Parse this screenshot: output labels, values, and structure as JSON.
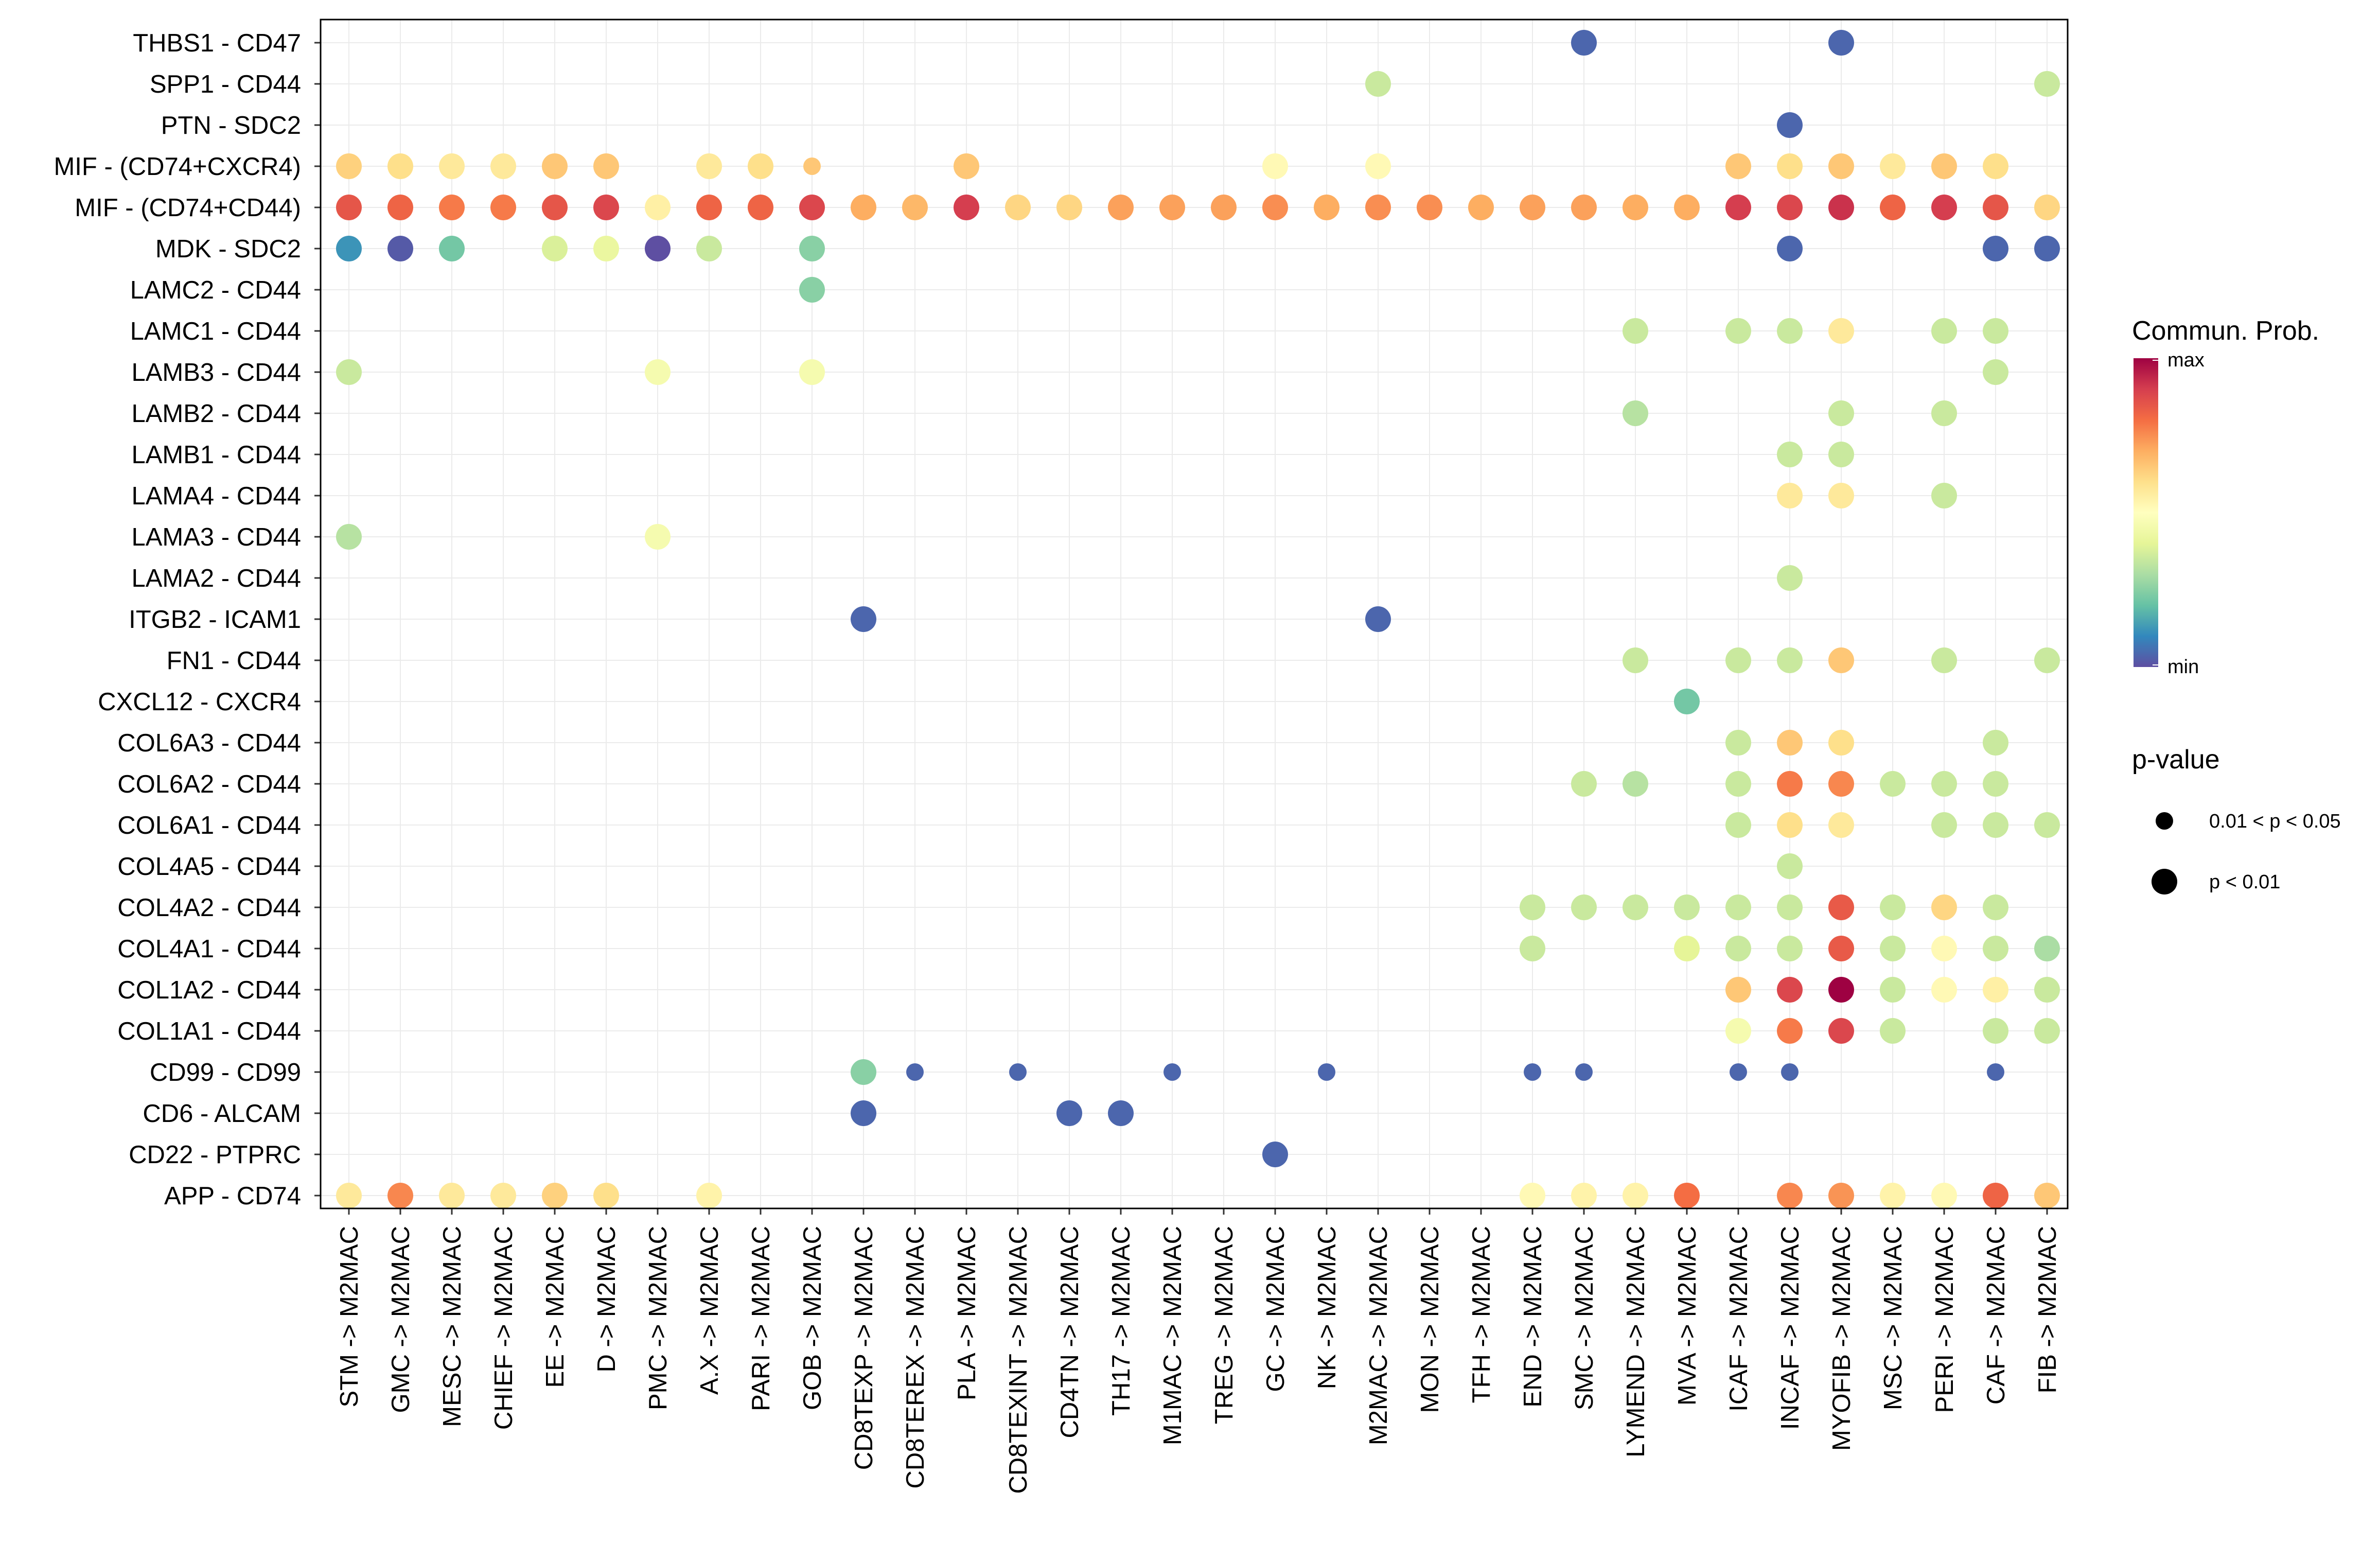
{
  "chart_data": {
    "type": "dot",
    "xlabel": "",
    "ylabel": "",
    "x_categories": [
      "STM -> M2MAC",
      "GMC -> M2MAC",
      "MESC -> M2MAC",
      "CHIEF -> M2MAC",
      "EE -> M2MAC",
      "D -> M2MAC",
      "PMC -> M2MAC",
      "A.X -> M2MAC",
      "PARI -> M2MAC",
      "GOB -> M2MAC",
      "CD8TEXP -> M2MAC",
      "CD8TEREX -> M2MAC",
      "PLA -> M2MAC",
      "CD8TEXINT -> M2MAC",
      "CD4TN -> M2MAC",
      "TH17 -> M2MAC",
      "M1MAC -> M2MAC",
      "TREG -> M2MAC",
      "GC -> M2MAC",
      "NK -> M2MAC",
      "M2MAC -> M2MAC",
      "MON -> M2MAC",
      "TFH -> M2MAC",
      "END -> M2MAC",
      "SMC -> M2MAC",
      "LYMEND -> M2MAC",
      "MVA -> M2MAC",
      "ICAF -> M2MAC",
      "INCAF -> M2MAC",
      "MYOFIB -> M2MAC",
      "MSC -> M2MAC",
      "PERI -> M2MAC",
      "CAF -> M2MAC",
      "FIB -> M2MAC"
    ],
    "y_categories": [
      "THBS1 - CD47",
      "SPP1 - CD44",
      "PTN - SDC2",
      "MIF - (CD74+CXCR4)",
      "MIF - (CD74+CD44)",
      "MDK - SDC2",
      "LAMC2 - CD44",
      "LAMC1 - CD44",
      "LAMB3 - CD44",
      "LAMB2 - CD44",
      "LAMB1 - CD44",
      "LAMA4 - CD44",
      "LAMA3 - CD44",
      "LAMA2 - CD44",
      "ITGB2 - ICAM1",
      "FN1 - CD44",
      "CXCL12 - CXCR4",
      "COL6A3 - CD44",
      "COL6A2 - CD44",
      "COL6A1 - CD44",
      "COL4A5 - CD44",
      "COL4A2 - CD44",
      "COL4A1 - CD44",
      "COL1A2 - CD44",
      "COL1A1 - CD44",
      "CD99 - CD99",
      "CD6 - ALCAM",
      "CD22 - PTPRC",
      "APP - CD74"
    ],
    "value_scale": "relative communication probability, 0 = min, 1 = max",
    "points": [
      [
        "THBS1 - CD47",
        "SMC -> M2MAC",
        0.04,
        2
      ],
      [
        "THBS1 - CD47",
        "MYOFIB -> M2MAC",
        0.04,
        2
      ],
      [
        "SPP1 - CD44",
        "M2MAC -> M2MAC",
        0.35,
        2
      ],
      [
        "SPP1 - CD44",
        "FIB -> M2MAC",
        0.35,
        2
      ],
      [
        "PTN - SDC2",
        "INCAF -> M2MAC",
        0.04,
        2
      ],
      [
        "MIF - (CD74+CXCR4)",
        "STM -> M2MAC",
        0.63,
        2
      ],
      [
        "MIF - (CD74+CXCR4)",
        "GMC -> M2MAC",
        0.6,
        2
      ],
      [
        "MIF - (CD74+CXCR4)",
        "MESC -> M2MAC",
        0.57,
        2
      ],
      [
        "MIF - (CD74+CXCR4)",
        "CHIEF -> M2MAC",
        0.57,
        2
      ],
      [
        "MIF - (CD74+CXCR4)",
        "EE -> M2MAC",
        0.65,
        2
      ],
      [
        "MIF - (CD74+CXCR4)",
        "D -> M2MAC",
        0.65,
        2
      ],
      [
        "MIF - (CD74+CXCR4)",
        "A.X -> M2MAC",
        0.57,
        2
      ],
      [
        "MIF - (CD74+CXCR4)",
        "PARI -> M2MAC",
        0.6,
        2
      ],
      [
        "MIF - (CD74+CXCR4)",
        "GOB -> M2MAC",
        0.65,
        1
      ],
      [
        "MIF - (CD74+CXCR4)",
        "PLA -> M2MAC",
        0.65,
        2
      ],
      [
        "MIF - (CD74+CXCR4)",
        "GC -> M2MAC",
        0.52,
        2
      ],
      [
        "MIF - (CD74+CXCR4)",
        "M2MAC -> M2MAC",
        0.52,
        2
      ],
      [
        "MIF - (CD74+CXCR4)",
        "ICAF -> M2MAC",
        0.65,
        2
      ],
      [
        "MIF - (CD74+CXCR4)",
        "INCAF -> M2MAC",
        0.6,
        2
      ],
      [
        "MIF - (CD74+CXCR4)",
        "MYOFIB -> M2MAC",
        0.65,
        2
      ],
      [
        "MIF - (CD74+CXCR4)",
        "MSC -> M2MAC",
        0.57,
        2
      ],
      [
        "MIF - (CD74+CXCR4)",
        "PERI -> M2MAC",
        0.65,
        2
      ],
      [
        "MIF - (CD74+CXCR4)",
        "CAF -> M2MAC",
        0.6,
        2
      ],
      [
        "MIF - (CD74+CD44)",
        "STM -> M2MAC",
        0.85,
        2
      ],
      [
        "MIF - (CD74+CD44)",
        "GMC -> M2MAC",
        0.82,
        2
      ],
      [
        "MIF - (CD74+CD44)",
        "MESC -> M2MAC",
        0.78,
        2
      ],
      [
        "MIF - (CD74+CD44)",
        "CHIEF -> M2MAC",
        0.78,
        2
      ],
      [
        "MIF - (CD74+CD44)",
        "EE -> M2MAC",
        0.85,
        2
      ],
      [
        "MIF - (CD74+CD44)",
        "D -> M2MAC",
        0.88,
        2
      ],
      [
        "MIF - (CD74+CD44)",
        "PMC -> M2MAC",
        0.55,
        2
      ],
      [
        "MIF - (CD74+CD44)",
        "A.X -> M2MAC",
        0.82,
        2
      ],
      [
        "MIF - (CD74+CD44)",
        "PARI -> M2MAC",
        0.82,
        2
      ],
      [
        "MIF - (CD74+CD44)",
        "GOB -> M2MAC",
        0.88,
        2
      ],
      [
        "MIF - (CD74+CD44)",
        "CD8TEXP -> M2MAC",
        0.7,
        2
      ],
      [
        "MIF - (CD74+CD44)",
        "CD8TEREX -> M2MAC",
        0.68,
        2
      ],
      [
        "MIF - (CD74+CD44)",
        "PLA -> M2MAC",
        0.9,
        2
      ],
      [
        "MIF - (CD74+CD44)",
        "CD8TEXINT -> M2MAC",
        0.62,
        2
      ],
      [
        "MIF - (CD74+CD44)",
        "CD4TN -> M2MAC",
        0.62,
        2
      ],
      [
        "MIF - (CD74+CD44)",
        "TH17 -> M2MAC",
        0.72,
        2
      ],
      [
        "MIF - (CD74+CD44)",
        "M1MAC -> M2MAC",
        0.72,
        2
      ],
      [
        "MIF - (CD74+CD44)",
        "TREG -> M2MAC",
        0.72,
        2
      ],
      [
        "MIF - (CD74+CD44)",
        "GC -> M2MAC",
        0.75,
        2
      ],
      [
        "MIF - (CD74+CD44)",
        "NK -> M2MAC",
        0.7,
        2
      ],
      [
        "MIF - (CD74+CD44)",
        "M2MAC -> M2MAC",
        0.75,
        2
      ],
      [
        "MIF - (CD74+CD44)",
        "MON -> M2MAC",
        0.75,
        2
      ],
      [
        "MIF - (CD74+CD44)",
        "TFH -> M2MAC",
        0.7,
        2
      ],
      [
        "MIF - (CD74+CD44)",
        "END -> M2MAC",
        0.72,
        2
      ],
      [
        "MIF - (CD74+CD44)",
        "SMC -> M2MAC",
        0.72,
        2
      ],
      [
        "MIF - (CD74+CD44)",
        "LYMEND -> M2MAC",
        0.7,
        2
      ],
      [
        "MIF - (CD74+CD44)",
        "MVA -> M2MAC",
        0.7,
        2
      ],
      [
        "MIF - (CD74+CD44)",
        "ICAF -> M2MAC",
        0.9,
        2
      ],
      [
        "MIF - (CD74+CD44)",
        "INCAF -> M2MAC",
        0.88,
        2
      ],
      [
        "MIF - (CD74+CD44)",
        "MYOFIB -> M2MAC",
        0.92,
        2
      ],
      [
        "MIF - (CD74+CD44)",
        "MSC -> M2MAC",
        0.82,
        2
      ],
      [
        "MIF - (CD74+CD44)",
        "PERI -> M2MAC",
        0.9,
        2
      ],
      [
        "MIF - (CD74+CD44)",
        "CAF -> M2MAC",
        0.85,
        2
      ],
      [
        "MIF - (CD74+CD44)",
        "FIB -> M2MAC",
        0.62,
        2
      ],
      [
        "MDK - SDC2",
        "STM -> M2MAC",
        0.12,
        2
      ],
      [
        "MDK - SDC2",
        "GMC -> M2MAC",
        0.02,
        2
      ],
      [
        "MDK - SDC2",
        "MESC -> M2MAC",
        0.22,
        2
      ],
      [
        "MDK - SDC2",
        "EE -> M2MAC",
        0.38,
        2
      ],
      [
        "MDK - SDC2",
        "D -> M2MAC",
        0.42,
        2
      ],
      [
        "MDK - SDC2",
        "PMC -> M2MAC",
        0.0,
        2
      ],
      [
        "MDK - SDC2",
        "A.X -> M2MAC",
        0.35,
        2
      ],
      [
        "MDK - SDC2",
        "GOB -> M2MAC",
        0.25,
        2
      ],
      [
        "MDK - SDC2",
        "INCAF -> M2MAC",
        0.04,
        2
      ],
      [
        "MDK - SDC2",
        "CAF -> M2MAC",
        0.04,
        2
      ],
      [
        "MDK - SDC2",
        "FIB -> M2MAC",
        0.04,
        2
      ],
      [
        "LAMC2 - CD44",
        "GOB -> M2MAC",
        0.25,
        2
      ],
      [
        "LAMC1 - CD44",
        "LYMEND -> M2MAC",
        0.35,
        2
      ],
      [
        "LAMC1 - CD44",
        "ICAF -> M2MAC",
        0.35,
        2
      ],
      [
        "LAMC1 - CD44",
        "INCAF -> M2MAC",
        0.35,
        2
      ],
      [
        "LAMC1 - CD44",
        "MYOFIB -> M2MAC",
        0.57,
        2
      ],
      [
        "LAMC1 - CD44",
        "PERI -> M2MAC",
        0.35,
        2
      ],
      [
        "LAMC1 - CD44",
        "CAF -> M2MAC",
        0.35,
        2
      ],
      [
        "LAMB3 - CD44",
        "STM -> M2MAC",
        0.35,
        2
      ],
      [
        "LAMB3 - CD44",
        "PMC -> M2MAC",
        0.46,
        2
      ],
      [
        "LAMB3 - CD44",
        "GOB -> M2MAC",
        0.46,
        2
      ],
      [
        "LAMB3 - CD44",
        "CAF -> M2MAC",
        0.35,
        2
      ],
      [
        "LAMB2 - CD44",
        "LYMEND -> M2MAC",
        0.32,
        2
      ],
      [
        "LAMB2 - CD44",
        "MYOFIB -> M2MAC",
        0.35,
        2
      ],
      [
        "LAMB2 - CD44",
        "PERI -> M2MAC",
        0.35,
        2
      ],
      [
        "LAMB1 - CD44",
        "INCAF -> M2MAC",
        0.35,
        2
      ],
      [
        "LAMB1 - CD44",
        "MYOFIB -> M2MAC",
        0.35,
        2
      ],
      [
        "LAMA4 - CD44",
        "INCAF -> M2MAC",
        0.57,
        2
      ],
      [
        "LAMA4 - CD44",
        "MYOFIB -> M2MAC",
        0.57,
        2
      ],
      [
        "LAMA4 - CD44",
        "PERI -> M2MAC",
        0.35,
        2
      ],
      [
        "LAMA3 - CD44",
        "STM -> M2MAC",
        0.32,
        2
      ],
      [
        "LAMA3 - CD44",
        "PMC -> M2MAC",
        0.46,
        2
      ],
      [
        "LAMA2 - CD44",
        "INCAF -> M2MAC",
        0.35,
        2
      ],
      [
        "ITGB2 - ICAM1",
        "CD8TEXP -> M2MAC",
        0.04,
        2
      ],
      [
        "ITGB2 - ICAM1",
        "M2MAC -> M2MAC",
        0.04,
        2
      ],
      [
        "FN1 - CD44",
        "LYMEND -> M2MAC",
        0.35,
        2
      ],
      [
        "FN1 - CD44",
        "ICAF -> M2MAC",
        0.35,
        2
      ],
      [
        "FN1 - CD44",
        "INCAF -> M2MAC",
        0.35,
        2
      ],
      [
        "FN1 - CD44",
        "MYOFIB -> M2MAC",
        0.65,
        2
      ],
      [
        "FN1 - CD44",
        "PERI -> M2MAC",
        0.35,
        2
      ],
      [
        "FN1 - CD44",
        "FIB -> M2MAC",
        0.35,
        2
      ],
      [
        "CXCL12 - CXCR4",
        "MVA -> M2MAC",
        0.22,
        2
      ],
      [
        "COL6A3 - CD44",
        "ICAF -> M2MAC",
        0.35,
        2
      ],
      [
        "COL6A3 - CD44",
        "INCAF -> M2MAC",
        0.65,
        2
      ],
      [
        "COL6A3 - CD44",
        "MYOFIB -> M2MAC",
        0.6,
        2
      ],
      [
        "COL6A3 - CD44",
        "CAF -> M2MAC",
        0.35,
        2
      ],
      [
        "COL6A2 - CD44",
        "SMC -> M2MAC",
        0.35,
        2
      ],
      [
        "COL6A2 - CD44",
        "LYMEND -> M2MAC",
        0.32,
        2
      ],
      [
        "COL6A2 - CD44",
        "ICAF -> M2MAC",
        0.35,
        2
      ],
      [
        "COL6A2 - CD44",
        "INCAF -> M2MAC",
        0.78,
        2
      ],
      [
        "COL6A2 - CD44",
        "MYOFIB -> M2MAC",
        0.76,
        2
      ],
      [
        "COL6A2 - CD44",
        "MSC -> M2MAC",
        0.35,
        2
      ],
      [
        "COL6A2 - CD44",
        "PERI -> M2MAC",
        0.35,
        2
      ],
      [
        "COL6A2 - CD44",
        "CAF -> M2MAC",
        0.35,
        2
      ],
      [
        "COL6A1 - CD44",
        "ICAF -> M2MAC",
        0.35,
        2
      ],
      [
        "COL6A1 - CD44",
        "INCAF -> M2MAC",
        0.6,
        2
      ],
      [
        "COL6A1 - CD44",
        "MYOFIB -> M2MAC",
        0.57,
        2
      ],
      [
        "COL6A1 - CD44",
        "PERI -> M2MAC",
        0.35,
        2
      ],
      [
        "COL6A1 - CD44",
        "CAF -> M2MAC",
        0.35,
        2
      ],
      [
        "COL6A1 - CD44",
        "FIB -> M2MAC",
        0.35,
        2
      ],
      [
        "COL4A5 - CD44",
        "INCAF -> M2MAC",
        0.35,
        2
      ],
      [
        "COL4A2 - CD44",
        "END -> M2MAC",
        0.35,
        2
      ],
      [
        "COL4A2 - CD44",
        "SMC -> M2MAC",
        0.35,
        2
      ],
      [
        "COL4A2 - CD44",
        "LYMEND -> M2MAC",
        0.35,
        2
      ],
      [
        "COL4A2 - CD44",
        "MVA -> M2MAC",
        0.35,
        2
      ],
      [
        "COL4A2 - CD44",
        "ICAF -> M2MAC",
        0.35,
        2
      ],
      [
        "COL4A2 - CD44",
        "INCAF -> M2MAC",
        0.35,
        2
      ],
      [
        "COL4A2 - CD44",
        "MYOFIB -> M2MAC",
        0.84,
        2
      ],
      [
        "COL4A2 - CD44",
        "MSC -> M2MAC",
        0.35,
        2
      ],
      [
        "COL4A2 - CD44",
        "PERI -> M2MAC",
        0.62,
        2
      ],
      [
        "COL4A2 - CD44",
        "CAF -> M2MAC",
        0.35,
        2
      ],
      [
        "COL4A1 - CD44",
        "END -> M2MAC",
        0.35,
        2
      ],
      [
        "COL4A1 - CD44",
        "MVA -> M2MAC",
        0.4,
        2
      ],
      [
        "COL4A1 - CD44",
        "ICAF -> M2MAC",
        0.35,
        2
      ],
      [
        "COL4A1 - CD44",
        "INCAF -> M2MAC",
        0.35,
        2
      ],
      [
        "COL4A1 - CD44",
        "MYOFIB -> M2MAC",
        0.84,
        2
      ],
      [
        "COL4A1 - CD44",
        "MSC -> M2MAC",
        0.35,
        2
      ],
      [
        "COL4A1 - CD44",
        "PERI -> M2MAC",
        0.52,
        2
      ],
      [
        "COL4A1 - CD44",
        "CAF -> M2MAC",
        0.35,
        2
      ],
      [
        "COL4A1 - CD44",
        "FIB -> M2MAC",
        0.3,
        2
      ],
      [
        "COL1A2 - CD44",
        "ICAF -> M2MAC",
        0.65,
        2
      ],
      [
        "COL1A2 - CD44",
        "INCAF -> M2MAC",
        0.88,
        2
      ],
      [
        "COL1A2 - CD44",
        "MYOFIB -> M2MAC",
        1.0,
        2
      ],
      [
        "COL1A2 - CD44",
        "MSC -> M2MAC",
        0.35,
        2
      ],
      [
        "COL1A2 - CD44",
        "PERI -> M2MAC",
        0.52,
        2
      ],
      [
        "COL1A2 - CD44",
        "CAF -> M2MAC",
        0.55,
        2
      ],
      [
        "COL1A2 - CD44",
        "FIB -> M2MAC",
        0.35,
        2
      ],
      [
        "COL1A1 - CD44",
        "ICAF -> M2MAC",
        0.46,
        2
      ],
      [
        "COL1A1 - CD44",
        "INCAF -> M2MAC",
        0.78,
        2
      ],
      [
        "COL1A1 - CD44",
        "MYOFIB -> M2MAC",
        0.88,
        2
      ],
      [
        "COL1A1 - CD44",
        "MSC -> M2MAC",
        0.35,
        2
      ],
      [
        "COL1A1 - CD44",
        "CAF -> M2MAC",
        0.35,
        2
      ],
      [
        "COL1A1 - CD44",
        "FIB -> M2MAC",
        0.35,
        2
      ],
      [
        "CD99 - CD99",
        "CD8TEXP -> M2MAC",
        0.25,
        2
      ],
      [
        "CD99 - CD99",
        "CD8TEREX -> M2MAC",
        0.04,
        1
      ],
      [
        "CD99 - CD99",
        "CD8TEXINT -> M2MAC",
        0.04,
        1
      ],
      [
        "CD99 - CD99",
        "M1MAC -> M2MAC",
        0.04,
        1
      ],
      [
        "CD99 - CD99",
        "NK -> M2MAC",
        0.04,
        1
      ],
      [
        "CD99 - CD99",
        "END -> M2MAC",
        0.04,
        1
      ],
      [
        "CD99 - CD99",
        "SMC -> M2MAC",
        0.04,
        1
      ],
      [
        "CD99 - CD99",
        "ICAF -> M2MAC",
        0.04,
        1
      ],
      [
        "CD99 - CD99",
        "INCAF -> M2MAC",
        0.04,
        1
      ],
      [
        "CD99 - CD99",
        "CAF -> M2MAC",
        0.04,
        1
      ],
      [
        "CD6 - ALCAM",
        "CD8TEXP -> M2MAC",
        0.04,
        2
      ],
      [
        "CD6 - ALCAM",
        "CD4TN -> M2MAC",
        0.04,
        2
      ],
      [
        "CD6 - ALCAM",
        "TH17 -> M2MAC",
        0.04,
        2
      ],
      [
        "CD22 - PTPRC",
        "GC -> M2MAC",
        0.04,
        2
      ],
      [
        "APP - CD74",
        "STM -> M2MAC",
        0.57,
        2
      ],
      [
        "APP - CD74",
        "GMC -> M2MAC",
        0.76,
        2
      ],
      [
        "APP - CD74",
        "MESC -> M2MAC",
        0.57,
        2
      ],
      [
        "APP - CD74",
        "CHIEF -> M2MAC",
        0.57,
        2
      ],
      [
        "APP - CD74",
        "EE -> M2MAC",
        0.63,
        2
      ],
      [
        "APP - CD74",
        "D -> M2MAC",
        0.6,
        2
      ],
      [
        "APP - CD74",
        "A.X -> M2MAC",
        0.54,
        2
      ],
      [
        "APP - CD74",
        "END -> M2MAC",
        0.52,
        2
      ],
      [
        "APP - CD74",
        "SMC -> M2MAC",
        0.54,
        2
      ],
      [
        "APP - CD74",
        "LYMEND -> M2MAC",
        0.54,
        2
      ],
      [
        "APP - CD74",
        "MVA -> M2MAC",
        0.8,
        2
      ],
      [
        "APP - CD74",
        "INCAF -> M2MAC",
        0.76,
        2
      ],
      [
        "APP - CD74",
        "MYOFIB -> M2MAC",
        0.74,
        2
      ],
      [
        "APP - CD74",
        "MSC -> M2MAC",
        0.54,
        2
      ],
      [
        "APP - CD74",
        "PERI -> M2MAC",
        0.52,
        2
      ],
      [
        "APP - CD74",
        "CAF -> M2MAC",
        0.82,
        2
      ],
      [
        "APP - CD74",
        "FIB -> M2MAC",
        0.65,
        2
      ]
    ],
    "legend": {
      "color_title": "Commun. Prob.",
      "color_max": "max",
      "color_min": "min",
      "size_title": "p-value",
      "size_levels": [
        "0.01 < p < 0.05",
        "p < 0.01"
      ]
    },
    "colormap": [
      "#5E4FA2",
      "#3288BD",
      "#66C2A5",
      "#ABDDA4",
      "#E6F598",
      "#FFFFBF",
      "#FEE08B",
      "#FDAE61",
      "#F46D43",
      "#D53E4F",
      "#9E0142"
    ],
    "grid": true,
    "legend_position": "right"
  }
}
